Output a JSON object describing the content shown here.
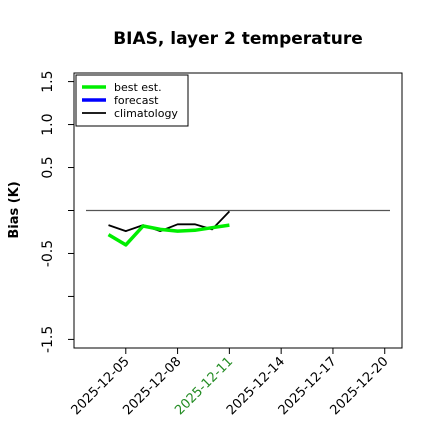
{
  "chart_data": {
    "type": "line",
    "title": "BIAS, layer 2 temperature",
    "xlabel": "",
    "ylabel": "Bias (K)",
    "ylim": [
      -1.6,
      1.6
    ],
    "xlim": [
      "2025-12-02",
      "2025-12-21"
    ],
    "y_ticks": [
      "-1.5",
      "-0.5",
      "0.5",
      "1.0",
      "1.5"
    ],
    "x_ticks": [
      {
        "label": "2025-12-05",
        "date": "2025-12-05",
        "color": "#000000"
      },
      {
        "label": "2025-12-08",
        "date": "2025-12-08",
        "color": "#000000"
      },
      {
        "label": "2025-12-11",
        "date": "2025-12-11",
        "color": "#228B22"
      },
      {
        "label": "2025-12-14",
        "date": "2025-12-14",
        "color": "#000000"
      },
      {
        "label": "2025-12-17",
        "date": "2025-12-17",
        "color": "#000000"
      },
      {
        "label": "2025-12-20",
        "date": "2025-12-20",
        "color": "#000000"
      }
    ],
    "reference_line": {
      "y": 0.0,
      "color": "#555555"
    },
    "legend": {
      "position": "top-left"
    },
    "series": [
      {
        "name": "best est.",
        "color": "#00ee00",
        "x": [
          "2025-12-04",
          "2025-12-05",
          "2025-12-06",
          "2025-12-07",
          "2025-12-08",
          "2025-12-09",
          "2025-12-10",
          "2025-12-11"
        ],
        "y": [
          -0.28,
          -0.4,
          -0.18,
          -0.22,
          -0.24,
          -0.23,
          -0.2,
          -0.17
        ]
      },
      {
        "name": "forecast",
        "color": "#0000ff",
        "x": [],
        "y": []
      },
      {
        "name": "climatology",
        "color": "#000000",
        "x": [
          "2025-12-04",
          "2025-12-05",
          "2025-12-06",
          "2025-12-07",
          "2025-12-08",
          "2025-12-09",
          "2025-12-10",
          "2025-12-11"
        ],
        "y": [
          -0.17,
          -0.24,
          -0.17,
          -0.24,
          -0.16,
          -0.16,
          -0.22,
          -0.01
        ]
      }
    ]
  }
}
